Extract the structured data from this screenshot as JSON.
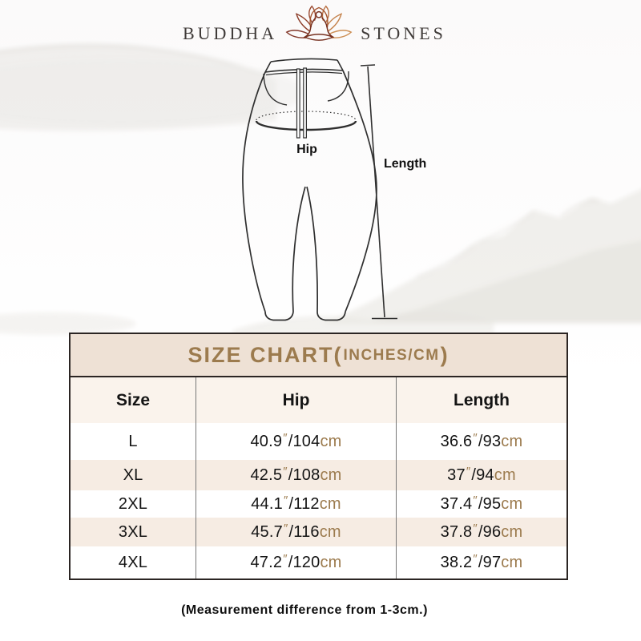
{
  "brand": {
    "left": "BUDDHA",
    "right": "STONES",
    "icon": "lotus-meditation-icon"
  },
  "diagram": {
    "hip_label": "Hip",
    "length_label": "Length"
  },
  "size_chart": {
    "heading": {
      "main": "SIZE CHART(",
      "small": "INCHES/CM",
      "end": ")"
    },
    "columns": {
      "size": "Size",
      "hip": "Hip",
      "length": "Length"
    },
    "units": {
      "inch_mark": "″",
      "slash": "/",
      "cm": "cm"
    },
    "rows": [
      {
        "size": "L",
        "hip_in": "40.9",
        "hip_cm": "104",
        "len_in": "36.6",
        "len_cm": "93"
      },
      {
        "size": "XL",
        "hip_in": "42.5",
        "hip_cm": "108",
        "len_in": "37",
        "len_cm": "94"
      },
      {
        "size": "2XL",
        "hip_in": "44.1",
        "hip_cm": "112",
        "len_in": "37.4",
        "len_cm": "95"
      },
      {
        "size": "3XL",
        "hip_in": "45.7",
        "hip_cm": "116",
        "len_in": "37.8",
        "len_cm": "96"
      },
      {
        "size": "4XL",
        "hip_in": "47.2",
        "hip_cm": "120",
        "len_in": "38.2",
        "len_cm": "97"
      }
    ]
  },
  "footer": {
    "note": "(Measurement difference from 1-3cm.)"
  },
  "colors": {
    "accent_gold": "#9c7b4e",
    "band_bg": "#eee1d5",
    "header_row_bg": "#faf3ec",
    "alt_row_bg": "#f6ece3",
    "logo_dark_red": "#76301f",
    "logo_red": "#8d3e2a",
    "logo_orange": "#c5834d",
    "line_ink": "#2f2f2f"
  }
}
